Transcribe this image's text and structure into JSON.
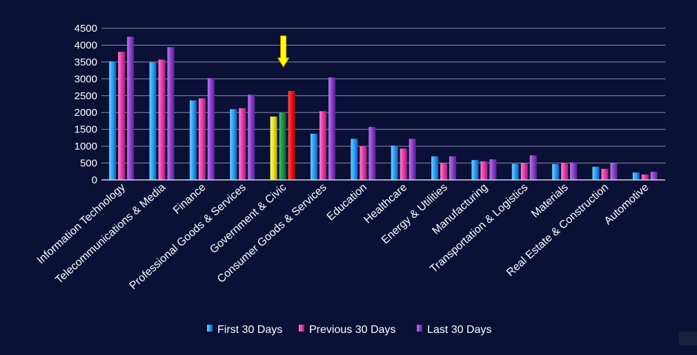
{
  "chart_data": {
    "type": "bar",
    "title": "",
    "xlabel": "",
    "ylabel": "",
    "ylim": [
      0,
      4500
    ],
    "yticks": [
      0,
      500,
      1000,
      1500,
      2000,
      2500,
      3000,
      3500,
      4000,
      4500
    ],
    "grid": true,
    "legend_position": "bottom",
    "categories": [
      "Information Technology",
      "Telecommunications & Media",
      "Finance",
      "Professional Goods & Services",
      "Government & Civic",
      "Consumer Goods &  Services",
      "Education",
      "Healthcare",
      "Energy & Utilities",
      "Manufacturing",
      "Transportation & Logistics",
      "Materials",
      "Real Estate & Construction",
      "Automotive"
    ],
    "series": [
      {
        "name": "First 30 Days",
        "color": "#2a9df4",
        "values": [
          3520,
          3490,
          2360,
          2100,
          1880,
          1370,
          1220,
          1020,
          700,
          590,
          480,
          470,
          390,
          220
        ]
      },
      {
        "name": "Previous 30 Days",
        "color": "#e83aa8",
        "values": [
          3800,
          3570,
          2420,
          2130,
          2000,
          2040,
          1000,
          930,
          500,
          550,
          500,
          500,
          330,
          160
        ]
      },
      {
        "name": "Last 30 Days",
        "color": "#8a3fc8",
        "values": [
          4250,
          3940,
          3020,
          2530,
          2640,
          3040,
          1570,
          1220,
          700,
          610,
          730,
          520,
          490,
          240
        ]
      }
    ],
    "highlight": {
      "category_index": 4,
      "colors": [
        "#e8e020",
        "#1f8f4a",
        "#ee1111"
      ],
      "arrow_color": "#ffff00"
    }
  }
}
